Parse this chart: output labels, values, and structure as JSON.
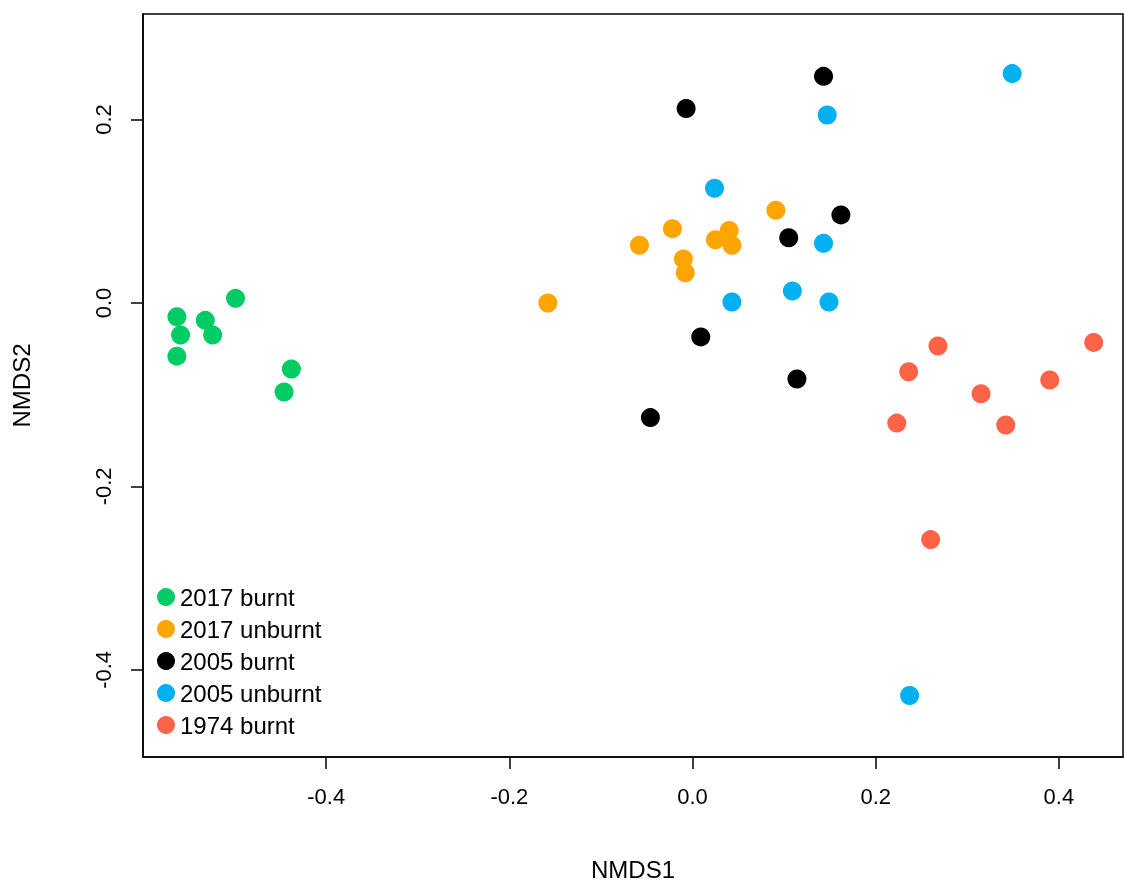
{
  "chart_data": {
    "type": "scatter",
    "xlabel": "NMDS1",
    "ylabel": "NMDS2",
    "xlim": [
      -0.6,
      0.47
    ],
    "ylim": [
      -0.495,
      0.315
    ],
    "xticks": [
      -0.4,
      -0.2,
      {
        "value": 0,
        "label": "0.0"
      },
      0.2,
      0.4
    ],
    "yticks": [
      -0.4,
      -0.2,
      {
        "value": 0,
        "label": "0.0"
      },
      0.2
    ],
    "legend": "bottom left",
    "marker": "circle",
    "series": [
      {
        "name": "2017 burnt",
        "color": "#00cc66",
        "x": [
          -0.563,
          -0.559,
          -0.563,
          -0.532,
          -0.524,
          -0.499,
          -0.438,
          -0.446
        ],
        "values": [
          -0.015,
          -0.035,
          -0.058,
          -0.019,
          -0.035,
          0.005,
          -0.072,
          -0.097
        ]
      },
      {
        "name": "2017 unburnt",
        "color": "#ffa500",
        "x": [
          -0.158,
          -0.058,
          -0.022,
          -0.01,
          -0.008,
          0.025,
          0.04,
          0.043,
          0.091
        ],
        "values": [
          0.0,
          0.063,
          0.081,
          0.048,
          0.033,
          0.069,
          0.079,
          0.063,
          0.101
        ]
      },
      {
        "name": "2005 burnt",
        "color": "#000000",
        "x": [
          -0.007,
          0.143,
          0.162,
          0.105,
          0.009,
          0.114,
          -0.046
        ],
        "values": [
          0.212,
          0.247,
          0.096,
          0.071,
          -0.037,
          -0.083,
          -0.125
        ]
      },
      {
        "name": "2005 unburnt",
        "color": "#00b0f0",
        "x": [
          0.349,
          0.147,
          0.024,
          0.143,
          0.043,
          0.109,
          0.149,
          0.237
        ],
        "values": [
          0.25,
          0.205,
          0.125,
          0.065,
          0.001,
          0.013,
          0.001,
          -0.428
        ]
      },
      {
        "name": "1974 burnt",
        "color": "#ff6347",
        "x": [
          0.438,
          0.268,
          0.236,
          0.315,
          0.39,
          0.223,
          0.342,
          0.26
        ],
        "values": [
          -0.043,
          -0.047,
          -0.075,
          -0.099,
          -0.084,
          -0.131,
          -0.133,
          -0.258
        ]
      }
    ]
  }
}
